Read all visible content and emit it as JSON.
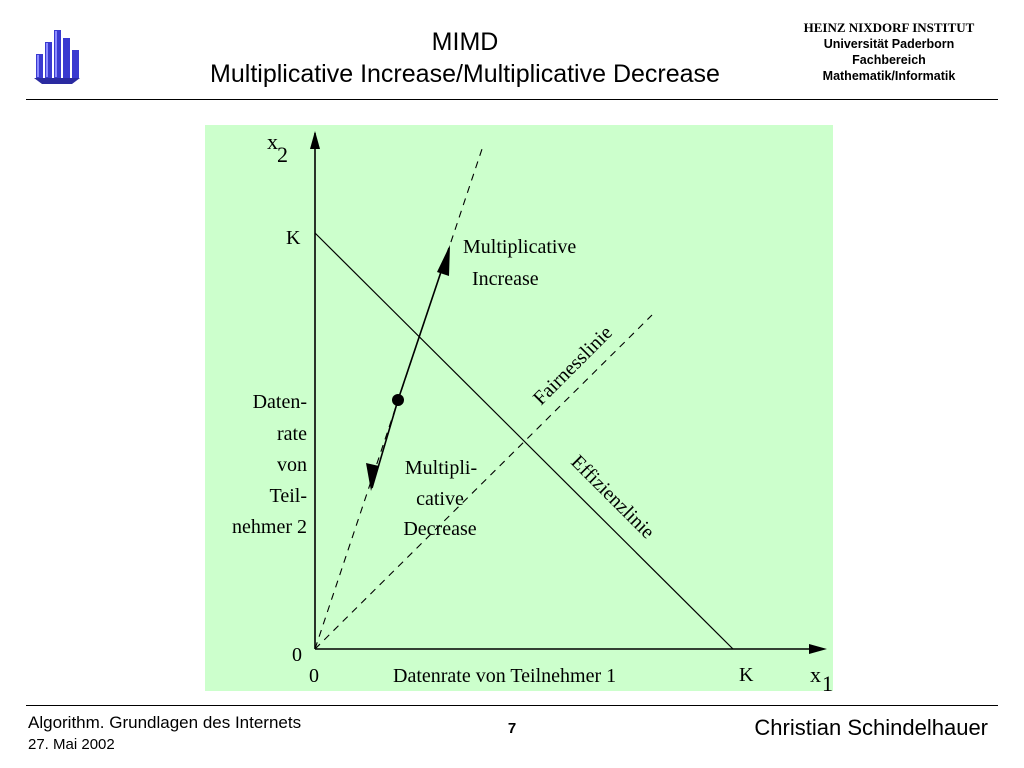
{
  "header": {
    "title_line1": "MIMD",
    "title_line2": "Multiplicative Increase/Multiplicative Decrease",
    "institute": {
      "name": "HEINZ NIXDORF INSTITUT",
      "university": "Universität Paderborn",
      "department": "Fachbereich",
      "faculty": "Mathematik/Informatik"
    },
    "logo": {
      "icon": "university-logo",
      "color": "#3a3ad0"
    }
  },
  "diagram": {
    "background": "#ccffcc",
    "axis_x_label": "x",
    "axis_x_sub": "1",
    "axis_y_label": "x",
    "axis_y_sub": "2",
    "origin_x": "0",
    "origin_y": "0",
    "k_x": "K",
    "k_y": "K",
    "x_caption": "Datenrate von Teilnehmer 1",
    "y_caption_lines": [
      "Daten-",
      "rate",
      "von",
      "Teil-",
      "nehmer 2"
    ],
    "efficiency_line_label": "Effizienzlinie",
    "fairness_line_label": "Fairnesslinie",
    "increase_label_lines": [
      "Multiplicative",
      "Increase"
    ],
    "decrease_label_lines": [
      "Multipli-",
      "cative",
      "Decrease"
    ]
  },
  "footer": {
    "course": "Algorithm. Grundlagen des Internets",
    "date": "27. Mai 2002",
    "page": "7",
    "author": "Christian Schindelhauer"
  }
}
